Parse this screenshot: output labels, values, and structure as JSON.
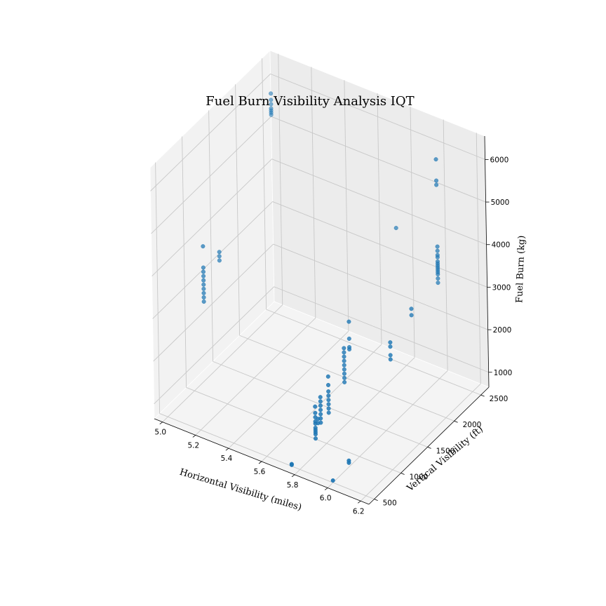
{
  "chart_data": {
    "type": "scatter",
    "title": "Fuel Burn Visibility Analysis IQT",
    "xlabel": "Horizontal Visibility (miles)",
    "ylabel": "Vertical Visibility (ft)",
    "zlabel": "Fuel Burn (kg)",
    "xlim": [
      4.95,
      6.25
    ],
    "ylim": [
      400,
      2650
    ],
    "zlim": [
      650,
      6550
    ],
    "xticks": [
      "5.0",
      "5.2",
      "5.4",
      "5.6",
      "5.8",
      "6.0",
      "6.2"
    ],
    "xtick_values": [
      5.0,
      5.2,
      5.4,
      5.6,
      5.8,
      6.0,
      6.2
    ],
    "yticks": [
      "500",
      "1000",
      "1500",
      "2000",
      "2500"
    ],
    "ytick_values": [
      500,
      1000,
      1500,
      2000,
      2500
    ],
    "zticks": [
      "1000",
      "2000",
      "3000",
      "4000",
      "5000",
      "6000"
    ],
    "ztick_values": [
      1000,
      2000,
      3000,
      4000,
      5000,
      6000
    ],
    "grid": true,
    "marker_color": "#1f77b4",
    "points": [
      {
        "x": 5.0,
        "y": 2500,
        "z": 5800
      },
      {
        "x": 5.0,
        "y": 2500,
        "z": 5650
      },
      {
        "x": 5.0,
        "y": 2500,
        "z": 5550
      },
      {
        "x": 5.0,
        "y": 2500,
        "z": 5450
      },
      {
        "x": 5.0,
        "y": 2500,
        "z": 5400
      },
      {
        "x": 5.0,
        "y": 2500,
        "z": 5350
      },
      {
        "x": 5.0,
        "y": 2500,
        "z": 5300
      },
      {
        "x": 5.0,
        "y": 1200,
        "z": 3800
      },
      {
        "x": 5.0,
        "y": 1200,
        "z": 3300
      },
      {
        "x": 5.0,
        "y": 1200,
        "z": 3200
      },
      {
        "x": 5.0,
        "y": 1200,
        "z": 3100
      },
      {
        "x": 5.0,
        "y": 1200,
        "z": 3000
      },
      {
        "x": 5.0,
        "y": 1200,
        "z": 2900
      },
      {
        "x": 5.0,
        "y": 1200,
        "z": 2800
      },
      {
        "x": 5.0,
        "y": 1200,
        "z": 2700
      },
      {
        "x": 5.0,
        "y": 1200,
        "z": 2600
      },
      {
        "x": 5.0,
        "y": 1200,
        "z": 2500
      },
      {
        "x": 5.0,
        "y": 1500,
        "z": 3300
      },
      {
        "x": 5.0,
        "y": 1500,
        "z": 3200
      },
      {
        "x": 5.0,
        "y": 1500,
        "z": 3100
      },
      {
        "x": 5.75,
        "y": 2500,
        "z": 3800
      },
      {
        "x": 6.0,
        "y": 2500,
        "z": 5800
      },
      {
        "x": 6.0,
        "y": 2500,
        "z": 5300
      },
      {
        "x": 6.0,
        "y": 2500,
        "z": 5200
      },
      {
        "x": 6.0,
        "y": 2500,
        "z": 3750
      },
      {
        "x": 6.0,
        "y": 2500,
        "z": 3650
      },
      {
        "x": 6.0,
        "y": 2500,
        "z": 3550
      },
      {
        "x": 6.0,
        "y": 2500,
        "z": 3500
      },
      {
        "x": 6.0,
        "y": 2500,
        "z": 3400
      },
      {
        "x": 6.0,
        "y": 2500,
        "z": 3350
      },
      {
        "x": 6.0,
        "y": 2500,
        "z": 3300
      },
      {
        "x": 6.0,
        "y": 2500,
        "z": 3250
      },
      {
        "x": 6.0,
        "y": 2500,
        "z": 3200
      },
      {
        "x": 6.0,
        "y": 2500,
        "z": 3150
      },
      {
        "x": 6.0,
        "y": 2500,
        "z": 3100
      },
      {
        "x": 6.0,
        "y": 2500,
        "z": 3000
      },
      {
        "x": 6.0,
        "y": 2500,
        "z": 2900
      },
      {
        "x": 6.0,
        "y": 2000,
        "z": 2900
      },
      {
        "x": 6.0,
        "y": 2000,
        "z": 2750
      },
      {
        "x": 6.0,
        "y": 1600,
        "z": 2600
      },
      {
        "x": 6.0,
        "y": 1600,
        "z": 2500
      },
      {
        "x": 6.0,
        "y": 1600,
        "z": 2300
      },
      {
        "x": 6.0,
        "y": 1600,
        "z": 2200
      },
      {
        "x": 5.75,
        "y": 1500,
        "z": 2200
      },
      {
        "x": 5.75,
        "y": 1500,
        "z": 2100
      },
      {
        "x": 5.75,
        "y": 1500,
        "z": 2000
      },
      {
        "x": 5.75,
        "y": 1500,
        "z": 1900
      },
      {
        "x": 5.75,
        "y": 1500,
        "z": 1800
      },
      {
        "x": 5.75,
        "y": 1500,
        "z": 1700
      },
      {
        "x": 5.75,
        "y": 1500,
        "z": 1600
      },
      {
        "x": 5.75,
        "y": 1500,
        "z": 1500
      },
      {
        "x": 5.75,
        "y": 1500,
        "z": 1400
      },
      {
        "x": 5.75,
        "y": 1200,
        "z": 1900
      },
      {
        "x": 5.75,
        "y": 1200,
        "z": 1700
      },
      {
        "x": 5.75,
        "y": 1200,
        "z": 1550
      },
      {
        "x": 5.75,
        "y": 1200,
        "z": 1450
      },
      {
        "x": 5.75,
        "y": 1200,
        "z": 1350
      },
      {
        "x": 5.75,
        "y": 1200,
        "z": 1250
      },
      {
        "x": 5.75,
        "y": 1200,
        "z": 1150
      },
      {
        "x": 5.75,
        "y": 1200,
        "z": 1050
      },
      {
        "x": 5.75,
        "y": 1600,
        "z": 2700
      },
      {
        "x": 5.75,
        "y": 1600,
        "z": 2300
      },
      {
        "x": 5.75,
        "y": 1600,
        "z": 2100
      },
      {
        "x": 5.75,
        "y": 1600,
        "z": 2050
      },
      {
        "x": 5.75,
        "y": 1050,
        "z": 1600
      },
      {
        "x": 5.75,
        "y": 1050,
        "z": 1500
      },
      {
        "x": 5.75,
        "y": 1050,
        "z": 1400
      },
      {
        "x": 5.75,
        "y": 1050,
        "z": 1300
      },
      {
        "x": 5.75,
        "y": 1050,
        "z": 1200
      },
      {
        "x": 5.75,
        "y": 1050,
        "z": 1100
      },
      {
        "x": 5.75,
        "y": 1050,
        "z": 1000
      },
      {
        "x": 5.75,
        "y": 950,
        "z": 1500
      },
      {
        "x": 5.75,
        "y": 950,
        "z": 1350
      },
      {
        "x": 5.75,
        "y": 950,
        "z": 1250
      },
      {
        "x": 5.75,
        "y": 950,
        "z": 1150
      },
      {
        "x": 5.75,
        "y": 950,
        "z": 1100
      },
      {
        "x": 5.75,
        "y": 950,
        "z": 1000
      },
      {
        "x": 5.75,
        "y": 950,
        "z": 950
      },
      {
        "x": 5.75,
        "y": 950,
        "z": 900
      },
      {
        "x": 5.75,
        "y": 950,
        "z": 850
      },
      {
        "x": 5.75,
        "y": 950,
        "z": 750
      },
      {
        "x": 5.75,
        "y": 1000,
        "z": 1150
      },
      {
        "x": 5.75,
        "y": 1000,
        "z": 1050
      },
      {
        "x": 6.0,
        "y": 800,
        "z": 800
      },
      {
        "x": 6.0,
        "y": 800,
        "z": 750
      },
      {
        "x": 5.75,
        "y": 500,
        "z": 700
      },
      {
        "x": 5.75,
        "y": 500,
        "z": 680
      },
      {
        "x": 6.0,
        "y": 500,
        "z": 700
      }
    ]
  }
}
